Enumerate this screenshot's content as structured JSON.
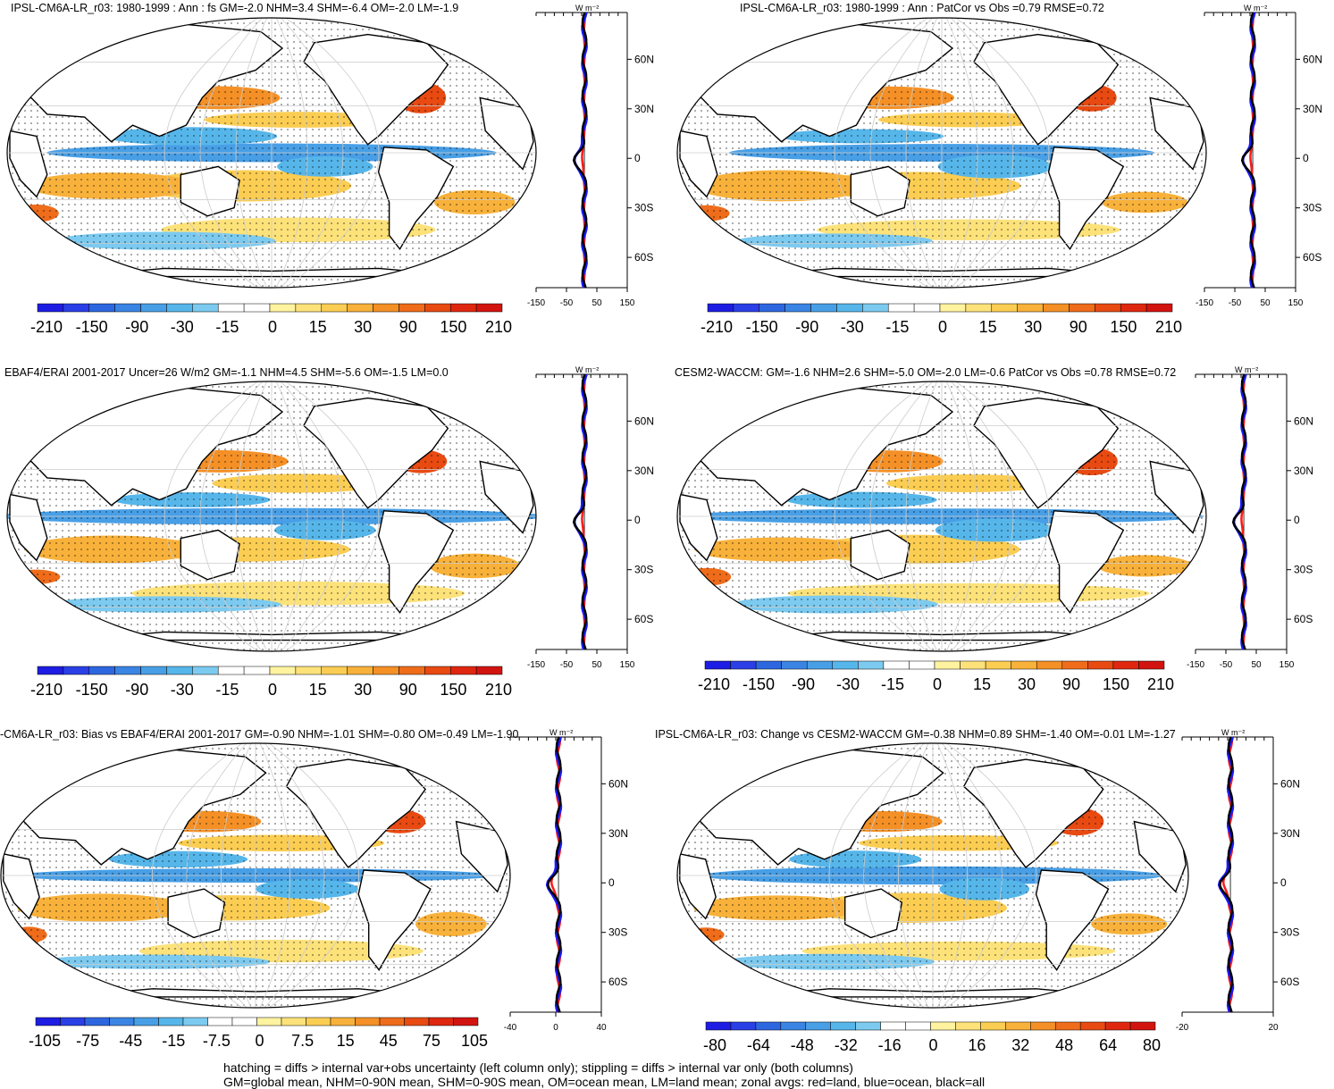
{
  "panels": [
    {
      "title": "IPSL-CM6A-LR_r03: 1980-1999 : Ann : fs GM=-2.0 NHM=3.4 SHM=-6.4 OM=-2.0 LM=-1.9",
      "cbar_labels": [
        "-210",
        "-150",
        "-90",
        "-30",
        "-15",
        "0",
        "15",
        "30",
        "90",
        "150",
        "210"
      ],
      "zonal_ticks": [
        "-150",
        "-50",
        "50",
        "150"
      ],
      "zonal_unit": "W m⁻²",
      "lat_labels": [
        "60N",
        "30N",
        "0",
        "30S",
        "60S"
      ]
    },
    {
      "title": "IPSL-CM6A-LR_r03: 1980-1999 : Ann : PatCor vs Obs =0.79 RMSE=0.72",
      "cbar_labels": [
        "-210",
        "-150",
        "-90",
        "-30",
        "-15",
        "0",
        "15",
        "30",
        "90",
        "150",
        "210"
      ],
      "zonal_ticks": [
        "-150",
        "-50",
        "50",
        "150"
      ],
      "zonal_unit": "W m⁻²",
      "lat_labels": [
        "60N",
        "30N",
        "0",
        "30S",
        "60S"
      ]
    },
    {
      "title": "EBAF4/ERAI 2001-2017 Uncer=26 W/m2 GM=-1.1 NHM=4.5 SHM=-5.6 OM=-1.5 LM=0.0",
      "cbar_labels": [
        "-210",
        "-150",
        "-90",
        "-30",
        "-15",
        "0",
        "15",
        "30",
        "90",
        "150",
        "210"
      ],
      "zonal_ticks": [
        "-150",
        "-50",
        "50",
        "150"
      ],
      "zonal_unit": "W m⁻²",
      "lat_labels": [
        "60N",
        "30N",
        "0",
        "30S",
        "60S"
      ]
    },
    {
      "title": "CESM2-WACCM: GM=-1.6 NHM=2.6 SHM=-5.0 OM=-2.0 LM=-0.6 PatCor vs Obs =0.78 RMSE=0.72",
      "cbar_labels": [
        "-210",
        "-150",
        "-90",
        "-30",
        "-15",
        "0",
        "15",
        "30",
        "90",
        "150",
        "210"
      ],
      "zonal_ticks": [
        "-150",
        "-50",
        "50",
        "150"
      ],
      "zonal_unit": "W m⁻²",
      "lat_labels": [
        "60N",
        "30N",
        "0",
        "30S",
        "60S"
      ]
    },
    {
      "title": "-CM6A-LR_r03: Bias vs EBAF4/ERAI 2001-2017 GM=-0.90 NHM=-1.01 SHM=-0.80 OM=-0.49 LM=-1.90",
      "cbar_labels": [
        "-105",
        "-75",
        "-45",
        "-15",
        "-7.5",
        "0",
        "7.5",
        "15",
        "45",
        "75",
        "105"
      ],
      "zonal_ticks": [
        "-40",
        "0",
        "40"
      ],
      "zonal_unit": "W m⁻²",
      "lat_labels": [
        "60N",
        "30N",
        "0",
        "30S",
        "60S"
      ]
    },
    {
      "title": "IPSL-CM6A-LR_r03: Change vs CESM2-WACCM GM=-0.38 NHM=0.89 SHM=-1.40 OM=-0.01 LM=-1.27",
      "cbar_labels": [
        "-80",
        "-64",
        "-48",
        "-32",
        "-16",
        "0",
        "16",
        "32",
        "48",
        "64",
        "80"
      ],
      "zonal_ticks": [
        "-20",
        "20"
      ],
      "zonal_unit": "W m⁻²",
      "lat_labels": [
        "60N",
        "30N",
        "0",
        "30S",
        "60S"
      ]
    }
  ],
  "footer": {
    "line1": "hatching = diffs > internal var+obs uncertainty (left column only); stippling = diffs > internal var only (both columns)",
    "line2": "GM=global mean, NHM=0-90N mean, SHM=0-90S mean, OM=ocean mean, LM=land mean; zonal avgs: red=land, blue=ocean, black=all"
  },
  "colors": {
    "palette": [
      "#1d1de3",
      "#2a3fe6",
      "#2d67e0",
      "#3a84e4",
      "#489fe6",
      "#56b6ea",
      "#7ccaf0",
      "#ffffff",
      "#ffffff",
      "#fff3a0",
      "#fde27a",
      "#fbcd52",
      "#f8b13a",
      "#f49026",
      "#ef6c1a",
      "#e84a12",
      "#df2710",
      "#d21410"
    ],
    "land": "#ffffff",
    "coast": "#000000",
    "zonal_land": "#ff1a1a",
    "zonal_ocean": "#1a1aff",
    "zonal_all": "#000000"
  }
}
